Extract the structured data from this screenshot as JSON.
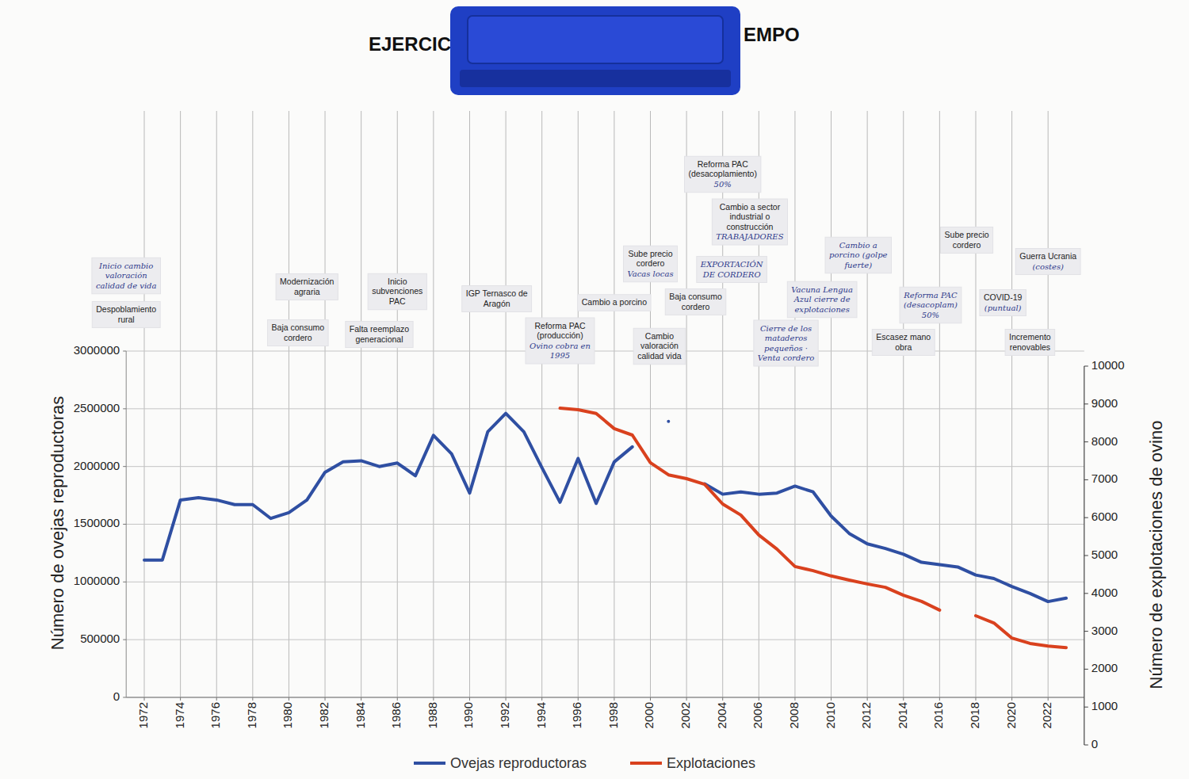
{
  "chart_data": {
    "type": "line",
    "title_parts": [
      "EJERCIC",
      "EMPO"
    ],
    "y_label": "Número de ovejas reproductoras",
    "y2_label": "Número de explotaciones de ovino",
    "x": [
      1972,
      1973,
      1974,
      1975,
      1976,
      1977,
      1978,
      1979,
      1980,
      1981,
      1982,
      1983,
      1984,
      1985,
      1986,
      1987,
      1988,
      1989,
      1990,
      1991,
      1992,
      1993,
      1994,
      1995,
      1996,
      1997,
      1998,
      1999,
      2000,
      2001,
      2002,
      2003,
      2004,
      2005,
      2006,
      2007,
      2008,
      2009,
      2010,
      2011,
      2012,
      2013,
      2014,
      2015,
      2016,
      2017,
      2018,
      2019,
      2020,
      2021,
      2022,
      2023
    ],
    "xlim": [
      1971,
      2024
    ],
    "xticks": [
      1972,
      1974,
      1976,
      1978,
      1980,
      1982,
      1984,
      1986,
      1988,
      1990,
      1992,
      1994,
      1996,
      1998,
      2000,
      2002,
      2004,
      2006,
      2008,
      2010,
      2012,
      2014,
      2016,
      2018,
      2020,
      2022
    ],
    "ylim": [
      0,
      3000000
    ],
    "yticks": [
      0,
      500000,
      1000000,
      1500000,
      2000000,
      2500000,
      3000000
    ],
    "y2lim": [
      0,
      10000
    ],
    "y2ticks": [
      0,
      1000,
      2000,
      3000,
      4000,
      5000,
      6000,
      7000,
      8000,
      9000,
      10000
    ],
    "grid": true,
    "legend": "bottom",
    "series": [
      {
        "name": "Ovejas reproductoras",
        "color": "#2f4fa2",
        "type": "line",
        "values": [
          1190000,
          1190000,
          1710000,
          1730000,
          1710000,
          1670000,
          1670000,
          1550000,
          1600000,
          1710000,
          1950000,
          2040000,
          2050000,
          2000000,
          2030000,
          1920000,
          2270000,
          2110000,
          1770000,
          2300000,
          2460000,
          2300000,
          1990000,
          1690000,
          2070000,
          1680000,
          2040000,
          2170000,
          null,
          2390000,
          null,
          1850000,
          1760000,
          1780000,
          1760000,
          1770000,
          1830000,
          1780000,
          1570000,
          1420000,
          1330000,
          1290000,
          1240000,
          1170000,
          1150000,
          1130000,
          1060000,
          1030000,
          960000,
          900000,
          830000,
          860000
        ]
      },
      {
        "name": "Explotaciones",
        "color": "#d9411e",
        "type": "line",
        "axis": "y2",
        "values": [
          null,
          null,
          null,
          null,
          null,
          null,
          null,
          null,
          null,
          null,
          null,
          null,
          null,
          null,
          null,
          null,
          null,
          null,
          null,
          null,
          null,
          null,
          null,
          8890,
          8850,
          8750,
          8350,
          8180,
          7450,
          7130,
          7030,
          6880,
          6360,
          6070,
          5540,
          5170,
          4710,
          4600,
          4460,
          4350,
          4250,
          4160,
          3950,
          3790,
          3560,
          null,
          3410,
          3220,
          2820,
          2680,
          2610,
          2570
        ]
      }
    ],
    "annotations": [
      {
        "x": 1971,
        "note": "Inicio cambio valoración calidad de vida"
      },
      {
        "x": 1971,
        "text": "Despoblamiento rural"
      },
      {
        "x": 1981,
        "text": "Modernización agraria"
      },
      {
        "x": 1980.5,
        "text": "Baja consumo cordero"
      },
      {
        "x": 1986,
        "text": "Inicio subvenciones PAC"
      },
      {
        "x": 1985,
        "text": "Falta reemplazo generacional"
      },
      {
        "x": 1991.5,
        "text": "IGP Ternasco de Aragón"
      },
      {
        "x": 1995,
        "text": "Reforma PAC (producción)",
        "note": "Ovino cobra en 1995"
      },
      {
        "x": 2000,
        "text": "Sube precio cordero",
        "note": "Vacas locas"
      },
      {
        "x": 1998,
        "text": "Cambio a porcino"
      },
      {
        "x": 2000.5,
        "text": "Cambio valoración calidad vida"
      },
      {
        "x": 2002.5,
        "text": "Baja consumo cordero"
      },
      {
        "x": 2004,
        "text": "Reforma PAC (desacoplamiento)",
        "note": "50%"
      },
      {
        "x": 2005.5,
        "text": "Cambio a sector industrial o construcción",
        "note": "TRABAJADORES"
      },
      {
        "x": 2004.5,
        "note": "EXPORTACIÓN DE CORDERO"
      },
      {
        "x": 2007.5,
        "note": "Cierre de los mataderos pequeños · Venta cordero"
      },
      {
        "x": 2009.5,
        "note": "Vacuna Lengua Azul cierre de explotaciones"
      },
      {
        "x": 2011.5,
        "note": "Cambio a porcino (golpe fuerte)"
      },
      {
        "x": 2017.5,
        "text": "Sube precio cordero"
      },
      {
        "x": 2015.5,
        "note": "Reforma PAC (desacoplam) 50%"
      },
      {
        "x": 2014,
        "text": "Escasez mano obra"
      },
      {
        "x": 2019.5,
        "text": "COVID-19",
        "note": "(puntual)"
      },
      {
        "x": 2022,
        "text": "Guerra Ucrania",
        "note": "(costes)"
      },
      {
        "x": 2021,
        "text": "Incremento renovables"
      }
    ]
  }
}
